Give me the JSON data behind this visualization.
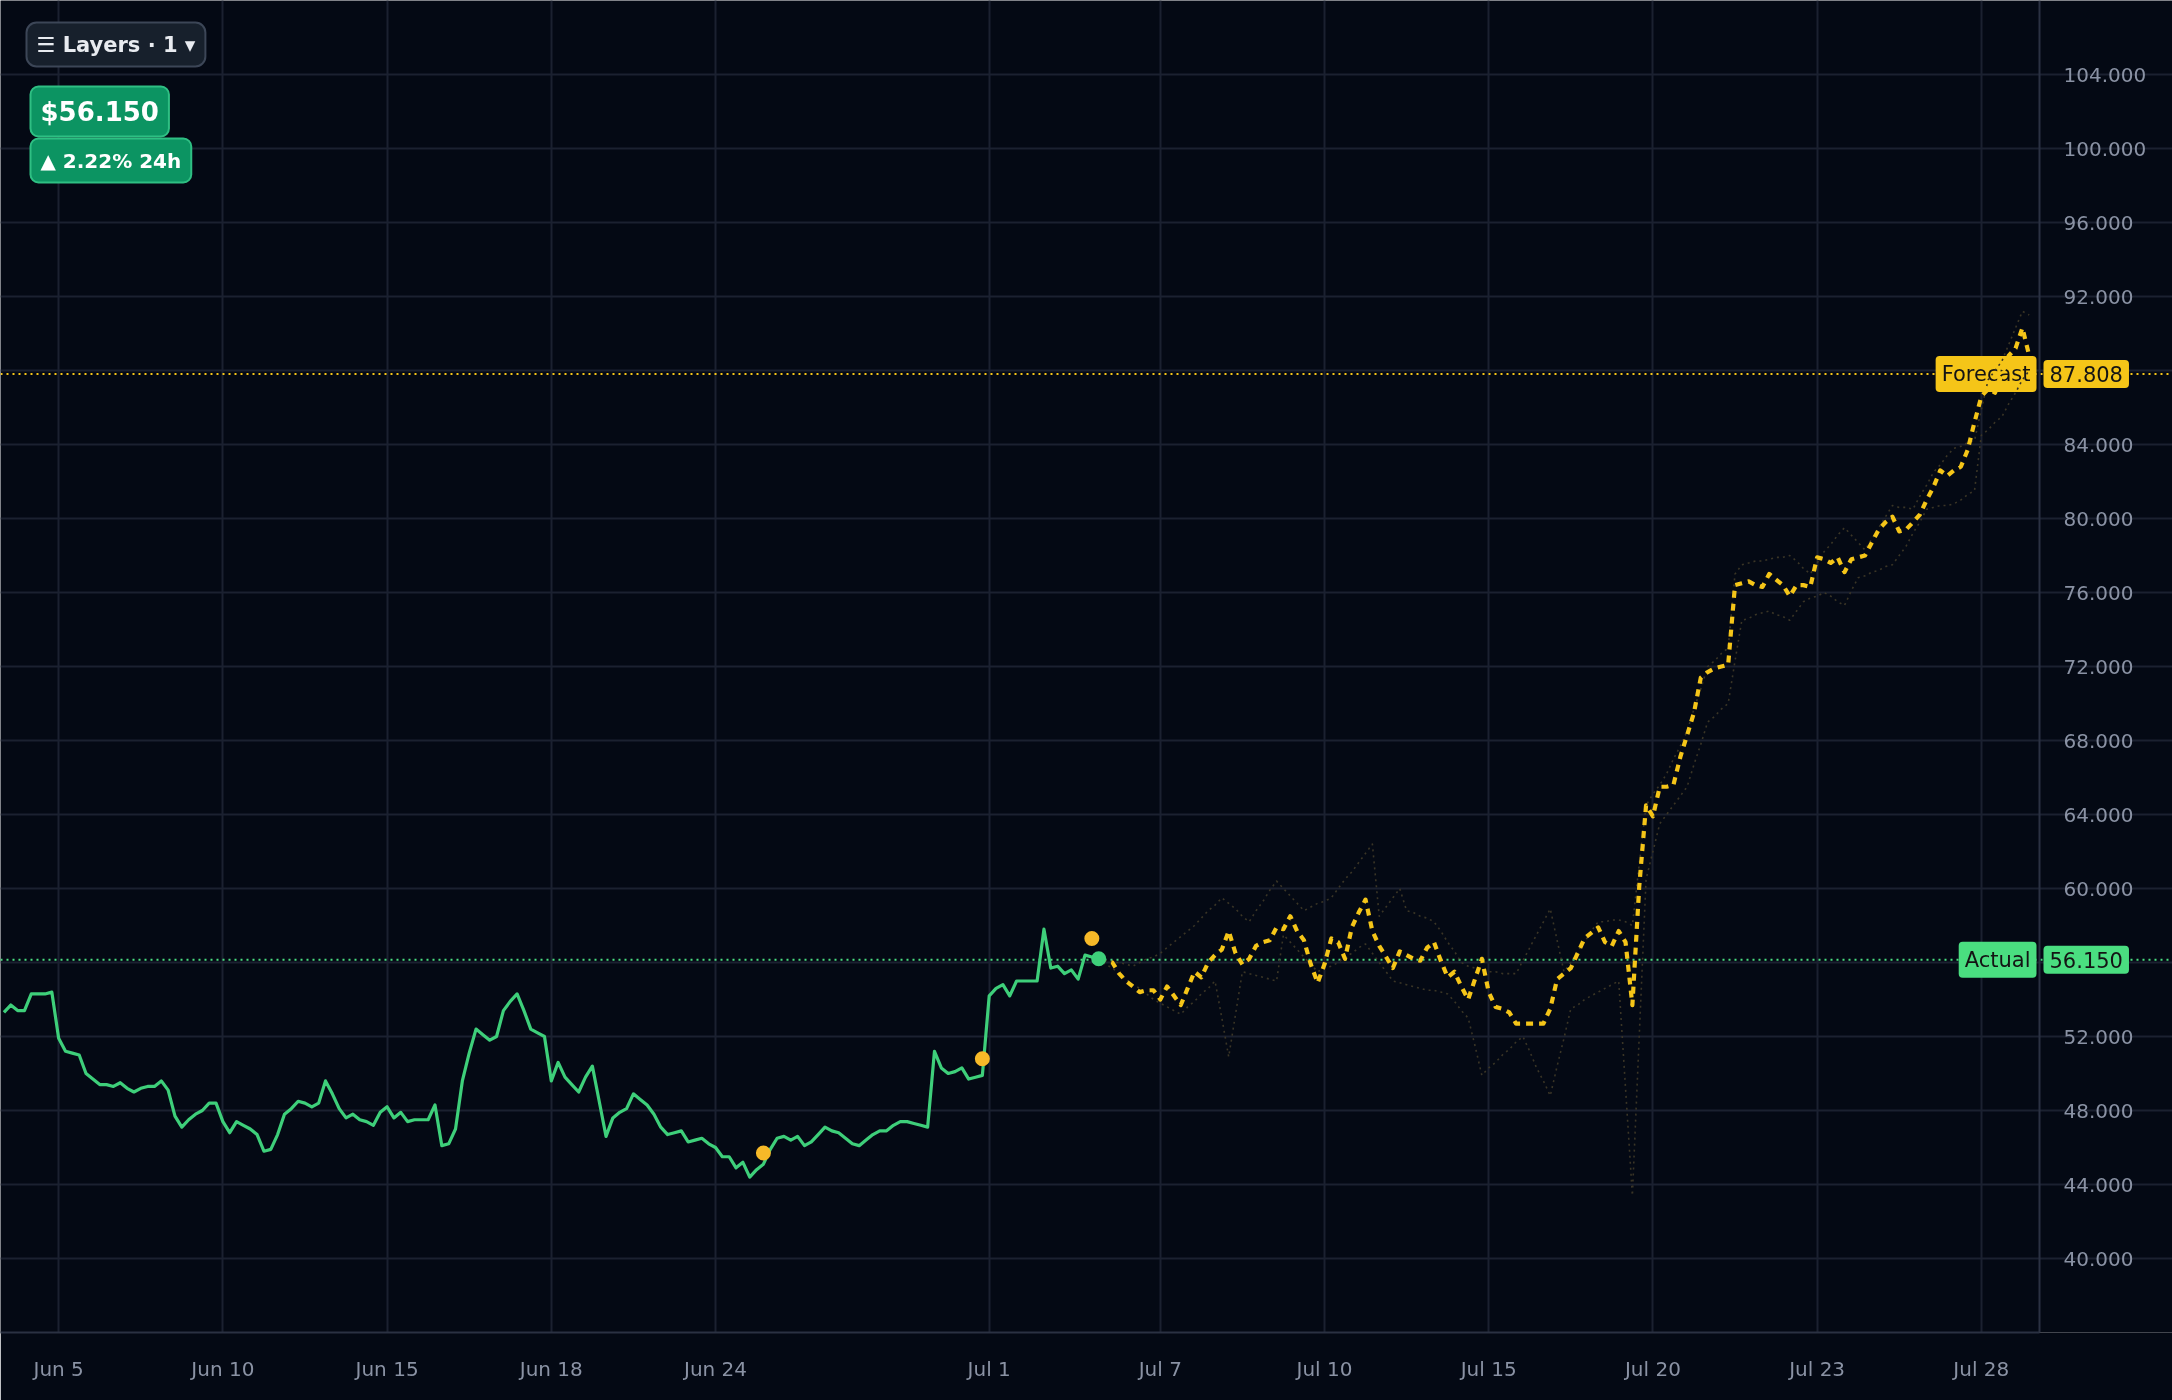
{
  "chart_data": {
    "type": "line",
    "categories": [
      null,
      null,
      null,
      null,
      null,
      null,
      null,
      null,
      "Jun 5",
      null,
      null,
      null,
      null,
      null,
      null,
      null,
      null,
      null,
      null,
      null,
      null,
      null,
      null,
      null,
      null,
      null,
      null,
      null,
      null,
      null,
      null,
      null,
      "Jun 10",
      null,
      null,
      null,
      null,
      null,
      null,
      null,
      null,
      null,
      null,
      null,
      null,
      null,
      null,
      null,
      null,
      null,
      null,
      null,
      null,
      null,
      null,
      null,
      "Jun 15",
      null,
      null,
      null,
      null,
      null,
      null,
      null,
      null,
      null,
      null,
      null,
      null,
      null,
      null,
      null,
      null,
      null,
      null,
      null,
      null,
      null,
      null,
      null,
      "Jun 18",
      null,
      null,
      null,
      null,
      null,
      null,
      null,
      null,
      null,
      null,
      null,
      null,
      null,
      null,
      null,
      null,
      null,
      null,
      null,
      null,
      null,
      null,
      null,
      "Jun 24",
      null,
      null,
      null,
      null,
      null,
      null,
      null,
      null,
      null,
      null,
      null,
      null,
      null,
      null,
      null,
      null,
      null,
      null,
      null,
      null,
      null,
      null,
      null,
      null,
      null,
      null,
      null,
      null,
      null,
      null,
      null,
      null,
      null,
      null,
      null,
      null,
      null,
      null,
      null,
      "Jul 1",
      null,
      null,
      null,
      null,
      null,
      null,
      null,
      null,
      null,
      null,
      null,
      null,
      null,
      null,
      null,
      null,
      null,
      null,
      null,
      null,
      null,
      null,
      null,
      null,
      "Jul 7",
      null,
      null,
      null,
      null,
      null,
      null,
      null,
      null,
      null,
      null,
      null,
      null,
      null,
      null,
      null,
      null,
      null,
      null,
      null,
      null,
      null,
      null,
      null,
      "Jul 10",
      null,
      null,
      null,
      null,
      null,
      null,
      null,
      null,
      null,
      null,
      null,
      null,
      null,
      null,
      null,
      null,
      null,
      null,
      null,
      null,
      null,
      null,
      null,
      "Jul 15",
      null,
      null,
      null,
      null,
      null,
      null,
      null,
      null,
      null,
      null,
      null,
      null,
      null,
      null,
      null,
      null,
      null,
      null,
      null,
      null,
      null,
      null,
      null,
      "Jul 20",
      null,
      null,
      null,
      null,
      null,
      null,
      null,
      null,
      null,
      null,
      null,
      null,
      null,
      null,
      null,
      null,
      null,
      null,
      null,
      null,
      null,
      null,
      null,
      "Jul 23",
      null,
      null,
      null,
      null,
      null,
      null,
      null,
      null,
      null,
      null,
      null,
      null,
      null,
      null,
      null,
      null,
      null,
      null,
      null,
      null,
      null,
      null,
      null,
      "Jul 28",
      null,
      null,
      null,
      null,
      null,
      null,
      null,
      null
    ],
    "ylim": [
      36,
      108
    ],
    "yticks": [
      {
        "value": 40,
        "label": "40.000"
      },
      {
        "value": 44,
        "label": "44.000"
      },
      {
        "value": 48,
        "label": "48.000"
      },
      {
        "value": 52,
        "label": "52.000"
      },
      {
        "value": 56,
        "label": null
      },
      {
        "value": 60,
        "label": "60.000"
      },
      {
        "value": 64,
        "label": "64.000"
      },
      {
        "value": 68,
        "label": "68.000"
      },
      {
        "value": 72,
        "label": "72.000"
      },
      {
        "value": 76,
        "label": "76.000"
      },
      {
        "value": 80,
        "label": "80.000"
      },
      {
        "value": 84,
        "label": "84.000"
      },
      {
        "value": 88,
        "label": null
      },
      {
        "value": 92,
        "label": "92.000"
      },
      {
        "value": 96,
        "label": "96.000"
      },
      {
        "value": 100,
        "label": "100.000"
      },
      {
        "value": 104,
        "label": "104.000"
      }
    ],
    "grid": true,
    "series": [
      {
        "color": "#3ecf7a",
        "line_style": "solid",
        "values": [
          53.3,
          53.7,
          53.4,
          53.4,
          54.3,
          54.3,
          54.3,
          54.4,
          51.9,
          51.2,
          51.1,
          51.0,
          50.0,
          49.7,
          49.4,
          49.4,
          49.3,
          49.5,
          49.2,
          49.0,
          49.2,
          49.3,
          49.3,
          49.6,
          49.1,
          47.7,
          47.1,
          47.5,
          47.8,
          48.0,
          48.4,
          48.4,
          47.4,
          46.8,
          47.4,
          47.2,
          47.0,
          46.7,
          45.8,
          45.9,
          46.7,
          47.8,
          48.1,
          48.5,
          48.4,
          48.2,
          48.4,
          49.6,
          48.9,
          48.1,
          47.6,
          47.8,
          47.5,
          47.4,
          47.2,
          47.9,
          48.2,
          47.6,
          47.9,
          47.4,
          47.5,
          47.5,
          47.5,
          48.3,
          46.1,
          46.2,
          47.0,
          49.6,
          51.1,
          52.4,
          52.1,
          51.8,
          52.0,
          53.4,
          53.9,
          54.3,
          53.4,
          52.4,
          52.2,
          52.0,
          49.6,
          50.6,
          49.8,
          49.4,
          49.0,
          49.8,
          50.4,
          48.5,
          46.6,
          47.6,
          47.9,
          48.1,
          48.9,
          48.6,
          48.3,
          47.8,
          47.1,
          46.7,
          46.8,
          46.9,
          46.3,
          46.4,
          46.5,
          46.2,
          46.0,
          45.5,
          45.5,
          44.9,
          45.2,
          44.4,
          44.8,
          45.1,
          45.9,
          46.5,
          46.6,
          46.4,
          46.6,
          46.1,
          46.3,
          46.7,
          47.1,
          46.9,
          46.8,
          46.5,
          46.2,
          46.1,
          46.4,
          46.7,
          46.9,
          46.9,
          47.2,
          47.4,
          47.4,
          47.3,
          47.2,
          47.1,
          51.2,
          50.3,
          50.0,
          50.1,
          50.3,
          49.7,
          49.8,
          49.9,
          54.2,
          54.6,
          54.8,
          54.2,
          55.0,
          55.0,
          55.0,
          55.0,
          57.8,
          55.7,
          55.8,
          55.4,
          55.6,
          55.1,
          56.4,
          56.3,
          56.2,
          null,
          null,
          null,
          null,
          null,
          null,
          null,
          null,
          null,
          null,
          null,
          null,
          null,
          null,
          null,
          null,
          null,
          null,
          null,
          null,
          null,
          null,
          null,
          null,
          null,
          null,
          null,
          null,
          null,
          null,
          null,
          null,
          null,
          null,
          null,
          null,
          null,
          null,
          null,
          null,
          null,
          null,
          null,
          null,
          null,
          null,
          null,
          null,
          null,
          null,
          null,
          null,
          null,
          null,
          null,
          null,
          null,
          null,
          null,
          null,
          null,
          null,
          null,
          null,
          null,
          null,
          null,
          null,
          null,
          null,
          null,
          null,
          null,
          null,
          null,
          null,
          null,
          null,
          null,
          null,
          null,
          null,
          null,
          null,
          null,
          null,
          null,
          null,
          null,
          null,
          null,
          null,
          null,
          null,
          null,
          null,
          null,
          null,
          null,
          null,
          null,
          null,
          null,
          null,
          null,
          null,
          null,
          null,
          null,
          null,
          null,
          null,
          null,
          null,
          null,
          null,
          null,
          null,
          null,
          null,
          null,
          null,
          null,
          null,
          null,
          null,
          null,
          null,
          null,
          null,
          null,
          null,
          null,
          null,
          null,
          null,
          null
        ]
      },
      {
        "color": "#3a3526",
        "line_style": "dotted",
        "values": [
          null,
          null,
          null,
          null,
          null,
          null,
          null,
          null,
          null,
          null,
          null,
          null,
          null,
          null,
          null,
          null,
          null,
          null,
          null,
          null,
          null,
          null,
          null,
          null,
          null,
          null,
          null,
          null,
          null,
          null,
          null,
          null,
          null,
          null,
          null,
          null,
          null,
          null,
          null,
          null,
          null,
          null,
          null,
          null,
          null,
          null,
          null,
          null,
          null,
          null,
          null,
          null,
          null,
          null,
          null,
          null,
          null,
          null,
          null,
          null,
          null,
          null,
          null,
          null,
          null,
          null,
          null,
          null,
          null,
          null,
          null,
          null,
          null,
          null,
          null,
          null,
          null,
          null,
          null,
          null,
          null,
          null,
          null,
          null,
          null,
          null,
          null,
          null,
          null,
          null,
          null,
          null,
          null,
          null,
          null,
          null,
          null,
          null,
          null,
          null,
          null,
          null,
          null,
          null,
          null,
          null,
          null,
          null,
          null,
          null,
          null,
          null,
          null,
          null,
          null,
          null,
          null,
          null,
          null,
          null,
          null,
          null,
          null,
          null,
          null,
          null,
          null,
          null,
          null,
          null,
          null,
          null,
          null,
          null,
          null,
          null,
          null,
          null,
          null,
          null,
          null,
          null,
          null,
          null,
          null,
          null,
          null,
          null,
          null,
          null,
          null,
          null,
          null,
          null,
          null,
          null,
          null,
          null,
          null,
          null,
          56.2,
          56.1,
          56.0,
          56.0,
          55.9,
          55.8,
          56.0,
          56.2,
          56.3,
          56.5,
          56.8,
          57.1,
          57.4,
          57.7,
          58.0,
          58.4,
          58.8,
          59.1,
          59.5,
          59.2,
          58.9,
          58.5,
          58.2,
          58.8,
          59.3,
          59.9,
          60.4,
          60.0,
          59.6,
          59.2,
          58.8,
          59.0,
          59.2,
          59.3,
          59.5,
          60.0,
          60.5,
          60.9,
          61.4,
          61.9,
          62.4,
          58.5,
          59.0,
          59.5,
          60.0,
          58.8,
          58.7,
          58.5,
          58.4,
          58.2,
          57.7,
          57.1,
          56.6,
          56.0,
          55.8,
          55.7,
          55.5,
          55.5,
          55.5,
          55.4,
          55.4,
          55.4,
          56.1,
          56.8,
          57.5,
          58.2,
          58.9,
          57.2,
          55.5,
          56.0,
          56.6,
          57.1,
          57.7,
          58.2,
          58.2,
          58.3,
          58.3,
          58.2,
          58.0,
          61.3,
          64.5,
          65.1,
          65.6,
          66.2,
          67.0,
          67.7,
          68.5,
          69.7,
          70.8,
          72.0,
          72.3,
          72.7,
          73.0,
          77.0,
          77.5,
          77.6,
          77.7,
          77.7,
          77.8,
          77.9,
          77.9,
          78.0,
          77.7,
          77.3,
          77.0,
          77.6,
          78.2,
          78.6,
          79.1,
          79.5,
          79.1,
          78.7,
          78.3,
          78.9,
          79.5,
          80.1,
          80.7,
          80.6,
          80.6,
          80.5,
          81.2,
          81.8,
          82.5,
          82.9,
          83.4,
          83.8,
          83.9,
          84.1,
          84.2,
          85.9,
          87.5,
          88.0,
          88.5,
          89.4,
          90.3,
          91.2,
          91.0,
          null
        ]
      },
      {
        "color": "#3a3526",
        "line_style": "dotted",
        "values": [
          null,
          null,
          null,
          null,
          null,
          null,
          null,
          null,
          null,
          null,
          null,
          null,
          null,
          null,
          null,
          null,
          null,
          null,
          null,
          null,
          null,
          null,
          null,
          null,
          null,
          null,
          null,
          null,
          null,
          null,
          null,
          null,
          null,
          null,
          null,
          null,
          null,
          null,
          null,
          null,
          null,
          null,
          null,
          null,
          null,
          null,
          null,
          null,
          null,
          null,
          null,
          null,
          null,
          null,
          null,
          null,
          null,
          null,
          null,
          null,
          null,
          null,
          null,
          null,
          null,
          null,
          null,
          null,
          null,
          null,
          null,
          null,
          null,
          null,
          null,
          null,
          null,
          null,
          null,
          null,
          null,
          null,
          null,
          null,
          null,
          null,
          null,
          null,
          null,
          null,
          null,
          null,
          null,
          null,
          null,
          null,
          null,
          null,
          null,
          null,
          null,
          null,
          null,
          null,
          null,
          null,
          null,
          null,
          null,
          null,
          null,
          null,
          null,
          null,
          null,
          null,
          null,
          null,
          null,
          null,
          null,
          null,
          null,
          null,
          null,
          null,
          null,
          null,
          null,
          null,
          null,
          null,
          null,
          null,
          null,
          null,
          null,
          null,
          null,
          null,
          null,
          null,
          null,
          null,
          null,
          null,
          null,
          null,
          null,
          null,
          null,
          null,
          null,
          null,
          null,
          null,
          null,
          null,
          null,
          null,
          56.2,
          55.9,
          55.7,
          55.4,
          55.1,
          54.8,
          54.6,
          54.3,
          54.0,
          53.8,
          53.6,
          53.4,
          53.2,
          53.6,
          53.9,
          54.3,
          54.6,
          55.0,
          53.0,
          50.9,
          53.2,
          55.5,
          55.4,
          55.3,
          55.2,
          55.1,
          55.0,
          57.5,
          57.1,
          56.7,
          56.3,
          55.9,
          55.5,
          55.7,
          55.8,
          56.0,
          56.3,
          56.5,
          56.8,
          57.0,
          56.5,
          56.0,
          55.5,
          55.0,
          54.9,
          54.8,
          54.7,
          54.6,
          54.5,
          54.5,
          54.4,
          54.3,
          53.9,
          53.4,
          53.0,
          51.5,
          49.9,
          50.3,
          50.6,
          51.0,
          51.3,
          51.7,
          52.0,
          51.2,
          50.3,
          49.6,
          48.8,
          50.4,
          51.9,
          53.5,
          53.7,
          54.0,
          54.2,
          54.4,
          54.6,
          54.8,
          55.0,
          49.2,
          43.4,
          52.0,
          60.5,
          62.0,
          63.5,
          64.0,
          64.5,
          65.0,
          65.5,
          66.7,
          67.8,
          69.0,
          69.3,
          69.7,
          70.0,
          72.3,
          74.5,
          74.6,
          74.8,
          74.9,
          75.0,
          74.8,
          74.7,
          74.5,
          75.0,
          75.5,
          75.7,
          75.8,
          76.0,
          75.8,
          75.5,
          75.3,
          76.1,
          76.8,
          76.9,
          77.1,
          77.2,
          77.4,
          77.5,
          78.0,
          78.5,
          79.2,
          79.8,
          80.5,
          80.6,
          80.7,
          80.7,
          80.8,
          81.0,
          81.3,
          81.5,
          84.5,
          84.8,
          85.2,
          85.5,
          86.2,
          86.8,
          87.5,
          88.0,
          null
        ]
      },
      {
        "color": "#f5c518",
        "line_style": "dashed",
        "values": [
          null,
          null,
          null,
          null,
          null,
          null,
          null,
          null,
          null,
          null,
          null,
          null,
          null,
          null,
          null,
          null,
          null,
          null,
          null,
          null,
          null,
          null,
          null,
          null,
          null,
          null,
          null,
          null,
          null,
          null,
          null,
          null,
          null,
          null,
          null,
          null,
          null,
          null,
          null,
          null,
          null,
          null,
          null,
          null,
          null,
          null,
          null,
          null,
          null,
          null,
          null,
          null,
          null,
          null,
          null,
          null,
          null,
          null,
          null,
          null,
          null,
          null,
          null,
          null,
          null,
          null,
          null,
          null,
          null,
          null,
          null,
          null,
          null,
          null,
          null,
          null,
          null,
          null,
          null,
          null,
          null,
          null,
          null,
          null,
          null,
          null,
          null,
          null,
          null,
          null,
          null,
          null,
          null,
          null,
          null,
          null,
          null,
          null,
          null,
          null,
          null,
          null,
          null,
          null,
          null,
          null,
          null,
          null,
          null,
          null,
          null,
          null,
          null,
          null,
          null,
          null,
          null,
          null,
          null,
          null,
          null,
          null,
          null,
          null,
          null,
          null,
          null,
          null,
          null,
          null,
          null,
          null,
          null,
          null,
          null,
          null,
          null,
          null,
          null,
          null,
          null,
          null,
          null,
          null,
          null,
          null,
          null,
          null,
          null,
          null,
          null,
          null,
          null,
          null,
          null,
          null,
          null,
          null,
          null,
          null,
          56.2,
          56.1,
          56.0,
          55.4,
          55.0,
          54.7,
          54.4,
          54.5,
          54.5,
          54.0,
          54.7,
          54.2,
          53.7,
          54.6,
          55.5,
          55.2,
          56.0,
          56.4,
          56.7,
          57.7,
          56.5,
          55.9,
          56.2,
          56.9,
          57.1,
          57.2,
          57.9,
          57.8,
          58.5,
          57.7,
          57.2,
          55.9,
          54.9,
          55.9,
          57.3,
          57.1,
          56.2,
          57.9,
          58.7,
          59.4,
          57.7,
          56.9,
          56.3,
          55.7,
          56.6,
          56.4,
          56.2,
          56.1,
          56.8,
          57.1,
          56.1,
          55.2,
          55.5,
          54.7,
          54.0,
          55.1,
          56.2,
          54.4,
          53.6,
          53.5,
          53.3,
          52.7,
          52.7,
          52.7,
          52.7,
          52.7,
          53.5,
          55.1,
          55.4,
          55.7,
          56.5,
          57.3,
          57.6,
          57.9,
          57.1,
          56.9,
          57.7,
          57.1,
          53.7,
          60.1,
          64.5,
          63.9,
          65.5,
          65.5,
          65.6,
          67.1,
          68.3,
          69.5,
          71.4,
          71.7,
          71.9,
          72.0,
          72.1,
          76.4,
          76.5,
          76.6,
          76.4,
          76.3,
          77.0,
          76.7,
          76.4,
          75.8,
          76.4,
          76.4,
          76.3,
          77.9,
          77.8,
          77.6,
          77.9,
          77.1,
          77.8,
          77.9,
          78.0,
          78.7,
          79.4,
          79.8,
          80.1,
          79.3,
          79.4,
          79.8,
          80.2,
          81.0,
          81.7,
          82.6,
          82.3,
          82.6,
          82.8,
          83.7,
          85.2,
          86.6,
          87.0,
          86.8,
          87.8,
          88.8,
          89.2,
          90.3,
          88.8,
          null
        ]
      },
      {
        "type": "scatter",
        "marker": "circle",
        "color": "#f7b928",
        "values": [
          null,
          null,
          null,
          null,
          null,
          null,
          null,
          null,
          null,
          null,
          null,
          null,
          null,
          null,
          null,
          null,
          null,
          null,
          null,
          null,
          null,
          null,
          null,
          null,
          null,
          null,
          null,
          null,
          null,
          null,
          null,
          null,
          null,
          null,
          null,
          null,
          null,
          null,
          null,
          null,
          null,
          null,
          null,
          null,
          null,
          null,
          null,
          null,
          null,
          null,
          null,
          null,
          null,
          null,
          null,
          null,
          null,
          null,
          null,
          null,
          null,
          null,
          null,
          null,
          null,
          null,
          null,
          null,
          null,
          null,
          null,
          null,
          null,
          null,
          null,
          null,
          null,
          null,
          null,
          null,
          null,
          null,
          null,
          null,
          null,
          null,
          null,
          null,
          null,
          null,
          null,
          null,
          null,
          null,
          null,
          null,
          null,
          null,
          null,
          null,
          null,
          null,
          null,
          null,
          null,
          null,
          null,
          null,
          null,
          null,
          null,
          45.7,
          null,
          null,
          null,
          null,
          null,
          null,
          null,
          null,
          null,
          null,
          null,
          null,
          null,
          null,
          null,
          null,
          null,
          null,
          null,
          null,
          null,
          null,
          null,
          null,
          null,
          null,
          null,
          null,
          null,
          null,
          null,
          50.8,
          null,
          null,
          null,
          null,
          null,
          null,
          null,
          null,
          null,
          null,
          null,
          null,
          null,
          null,
          null,
          57.3,
          null,
          null,
          null,
          null,
          null,
          null,
          null,
          null,
          null,
          null,
          null,
          null,
          null,
          null,
          null,
          null,
          null,
          null,
          null,
          null,
          null,
          null,
          null,
          null,
          null,
          null,
          null,
          null,
          null,
          null,
          null,
          null,
          null,
          null,
          null,
          null,
          null,
          null,
          null,
          null,
          null,
          null,
          null,
          null,
          null,
          null,
          null,
          null,
          null,
          null,
          null,
          null,
          null,
          null,
          null,
          null,
          null,
          null,
          null,
          null,
          null,
          null,
          null,
          null,
          null,
          null,
          null,
          null,
          null,
          null,
          null,
          null,
          null,
          null,
          null,
          null,
          null,
          null,
          null,
          null,
          null,
          null,
          null,
          null,
          null,
          null,
          null,
          null,
          null,
          null,
          null,
          null,
          null,
          null,
          null,
          null,
          null,
          null,
          null,
          null,
          null,
          null,
          null,
          null,
          null,
          null,
          null,
          null,
          null,
          null,
          null,
          null,
          null,
          null,
          null,
          null,
          null,
          null,
          null,
          null,
          null,
          null,
          null,
          null,
          null,
          null,
          null,
          null,
          null,
          null,
          null,
          null,
          null,
          null,
          null,
          null,
          null,
          null
        ]
      },
      {
        "type": "scatter",
        "marker": "circle",
        "color": "#3ecf7a",
        "values": [
          null,
          null,
          null,
          null,
          null,
          null,
          null,
          null,
          null,
          null,
          null,
          null,
          null,
          null,
          null,
          null,
          null,
          null,
          null,
          null,
          null,
          null,
          null,
          null,
          null,
          null,
          null,
          null,
          null,
          null,
          null,
          null,
          null,
          null,
          null,
          null,
          null,
          null,
          null,
          null,
          null,
          null,
          null,
          null,
          null,
          null,
          null,
          null,
          null,
          null,
          null,
          null,
          null,
          null,
          null,
          null,
          null,
          null,
          null,
          null,
          null,
          null,
          null,
          null,
          null,
          null,
          null,
          null,
          null,
          null,
          null,
          null,
          null,
          null,
          null,
          null,
          null,
          null,
          null,
          null,
          null,
          null,
          null,
          null,
          null,
          null,
          null,
          null,
          null,
          null,
          null,
          null,
          null,
          null,
          null,
          null,
          null,
          null,
          null,
          null,
          null,
          null,
          null,
          null,
          null,
          null,
          null,
          null,
          null,
          null,
          null,
          null,
          null,
          null,
          null,
          null,
          null,
          null,
          null,
          null,
          null,
          null,
          null,
          null,
          null,
          null,
          null,
          null,
          null,
          null,
          null,
          null,
          null,
          null,
          null,
          null,
          null,
          null,
          null,
          null,
          null,
          null,
          null,
          null,
          null,
          null,
          null,
          null,
          null,
          null,
          null,
          null,
          null,
          null,
          null,
          null,
          null,
          null,
          null,
          null,
          56.2,
          null,
          null,
          null,
          null,
          null,
          null,
          null,
          null,
          null,
          null,
          null,
          null,
          null,
          null,
          null,
          null,
          null,
          null,
          null,
          null,
          null,
          null,
          null,
          null,
          null,
          null,
          null,
          null,
          null,
          null,
          null,
          null,
          null,
          null,
          null,
          null,
          null,
          null,
          null,
          null,
          null,
          null,
          null,
          null,
          null,
          null,
          null,
          null,
          null,
          null,
          null,
          null,
          null,
          null,
          null,
          null,
          null,
          null,
          null,
          null,
          null,
          null,
          null,
          null,
          null,
          null,
          null,
          null,
          null,
          null,
          null,
          null,
          null,
          null,
          null,
          null,
          null,
          null,
          null,
          null,
          null,
          null,
          null,
          null,
          null,
          null,
          null,
          null,
          null,
          null,
          null,
          null,
          null,
          null,
          null,
          null,
          null,
          null,
          null,
          null,
          null,
          null,
          null,
          null,
          null,
          null,
          null,
          null,
          null,
          null,
          null,
          null,
          null,
          null,
          null,
          null,
          null,
          null,
          null,
          null,
          null,
          null,
          null,
          null,
          null,
          null,
          null,
          null,
          null,
          null,
          null,
          null,
          null,
          null,
          null,
          null,
          null
        ]
      }
    ],
    "ref_lines": [
      {
        "axis": "y",
        "value": 87.808,
        "label": "Forecast",
        "color": "#f5c518",
        "line_style": "dotted"
      },
      {
        "axis": "y",
        "value": 56.15,
        "label": "Actual",
        "color": "#4ade80",
        "line_style": "dotted"
      }
    ],
    "annotations": [
      "☰ Layers · 1 ▾",
      "$56.150",
      "▲ 2.22% 24h",
      {
        "text": "87.808",
        "y": 87.808
      },
      {
        "text": "56.150",
        "y": 56.15
      }
    ]
  }
}
